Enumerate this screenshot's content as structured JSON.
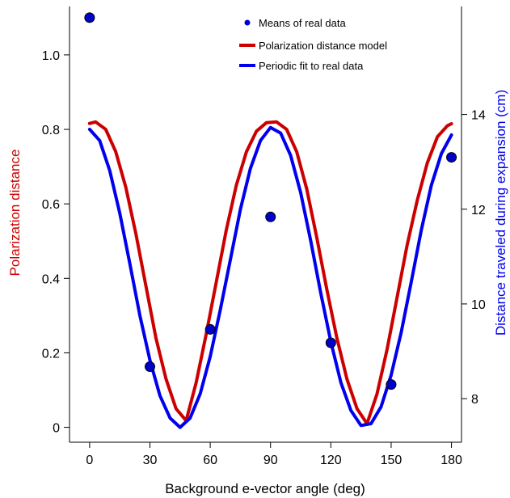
{
  "chart_data": {
    "type": "line",
    "xlabel": "Background e-vector angle (deg)",
    "ylabel_left": "Polarization distance",
    "ylabel_right": "Distance traveled during expansion (cm)",
    "xlim": [
      -10,
      185
    ],
    "ylim_left": [
      -0.04,
      1.13
    ],
    "ylim_right": [
      7.08,
      16.28
    ],
    "x_ticks": [
      0,
      30,
      60,
      90,
      120,
      150,
      180
    ],
    "y_left_ticks": [
      0,
      0.2,
      0.4,
      0.6,
      0.8,
      1.0
    ],
    "y_left_tick_labels": [
      "0",
      "0.2",
      "0.4",
      "0.6",
      "0.8",
      "1.0"
    ],
    "y_right_ticks": [
      8,
      10,
      12,
      14
    ],
    "y_right_tick_labels": [
      "8",
      "10",
      "12",
      "14"
    ],
    "colors": {
      "model": "#cc0000",
      "fit": "#0000ee",
      "points": "#0000cc",
      "left_label": "#cc0000",
      "right_label": "#0000ee"
    },
    "legend_placement": "top-right",
    "grid": false,
    "series": [
      {
        "name": "Means of real data",
        "kind": "scatter",
        "axis": "left",
        "points": [
          {
            "x": 0,
            "y": 1.1
          },
          {
            "x": 30,
            "y": 0.163
          },
          {
            "x": 60,
            "y": 0.263
          },
          {
            "x": 90,
            "y": 0.565
          },
          {
            "x": 120,
            "y": 0.227
          },
          {
            "x": 150,
            "y": 0.115
          },
          {
            "x": 180,
            "y": 0.725
          }
        ]
      },
      {
        "name": "Polarization distance model",
        "kind": "line",
        "axis": "left",
        "points": [
          {
            "x": 0,
            "y": 0.816
          },
          {
            "x": 3,
            "y": 0.82
          },
          {
            "x": 8,
            "y": 0.8
          },
          {
            "x": 13,
            "y": 0.74
          },
          {
            "x": 18,
            "y": 0.645
          },
          {
            "x": 23,
            "y": 0.52
          },
          {
            "x": 28,
            "y": 0.38
          },
          {
            "x": 33,
            "y": 0.24
          },
          {
            "x": 38,
            "y": 0.13
          },
          {
            "x": 43,
            "y": 0.05
          },
          {
            "x": 48,
            "y": 0.018
          },
          {
            "x": 53,
            "y": 0.12
          },
          {
            "x": 58,
            "y": 0.25
          },
          {
            "x": 63,
            "y": 0.39
          },
          {
            "x": 68,
            "y": 0.53
          },
          {
            "x": 73,
            "y": 0.65
          },
          {
            "x": 78,
            "y": 0.74
          },
          {
            "x": 83,
            "y": 0.795
          },
          {
            "x": 88,
            "y": 0.818
          },
          {
            "x": 93,
            "y": 0.82
          },
          {
            "x": 98,
            "y": 0.8
          },
          {
            "x": 103,
            "y": 0.74
          },
          {
            "x": 108,
            "y": 0.64
          },
          {
            "x": 113,
            "y": 0.51
          },
          {
            "x": 118,
            "y": 0.37
          },
          {
            "x": 123,
            "y": 0.24
          },
          {
            "x": 128,
            "y": 0.13
          },
          {
            "x": 133,
            "y": 0.05
          },
          {
            "x": 138,
            "y": 0.01
          },
          {
            "x": 143,
            "y": 0.09
          },
          {
            "x": 148,
            "y": 0.21
          },
          {
            "x": 153,
            "y": 0.35
          },
          {
            "x": 158,
            "y": 0.49
          },
          {
            "x": 163,
            "y": 0.61
          },
          {
            "x": 168,
            "y": 0.71
          },
          {
            "x": 173,
            "y": 0.78
          },
          {
            "x": 178,
            "y": 0.81
          },
          {
            "x": 180,
            "y": 0.815
          }
        ]
      },
      {
        "name": "Periodic fit to real data",
        "kind": "line",
        "axis": "left",
        "points": [
          {
            "x": 0,
            "y": 0.8
          },
          {
            "x": 5,
            "y": 0.77
          },
          {
            "x": 10,
            "y": 0.69
          },
          {
            "x": 15,
            "y": 0.575
          },
          {
            "x": 20,
            "y": 0.44
          },
          {
            "x": 25,
            "y": 0.3
          },
          {
            "x": 30,
            "y": 0.18
          },
          {
            "x": 35,
            "y": 0.085
          },
          {
            "x": 40,
            "y": 0.025
          },
          {
            "x": 45,
            "y": 0.0
          },
          {
            "x": 50,
            "y": 0.025
          },
          {
            "x": 55,
            "y": 0.09
          },
          {
            "x": 60,
            "y": 0.19
          },
          {
            "x": 65,
            "y": 0.315
          },
          {
            "x": 70,
            "y": 0.45
          },
          {
            "x": 75,
            "y": 0.585
          },
          {
            "x": 80,
            "y": 0.695
          },
          {
            "x": 85,
            "y": 0.77
          },
          {
            "x": 90,
            "y": 0.805
          },
          {
            "x": 95,
            "y": 0.79
          },
          {
            "x": 100,
            "y": 0.73
          },
          {
            "x": 105,
            "y": 0.63
          },
          {
            "x": 110,
            "y": 0.5
          },
          {
            "x": 115,
            "y": 0.36
          },
          {
            "x": 120,
            "y": 0.23
          },
          {
            "x": 125,
            "y": 0.12
          },
          {
            "x": 130,
            "y": 0.045
          },
          {
            "x": 135,
            "y": 0.005
          },
          {
            "x": 140,
            "y": 0.01
          },
          {
            "x": 145,
            "y": 0.055
          },
          {
            "x": 150,
            "y": 0.14
          },
          {
            "x": 155,
            "y": 0.255
          },
          {
            "x": 160,
            "y": 0.39
          },
          {
            "x": 165,
            "y": 0.53
          },
          {
            "x": 170,
            "y": 0.65
          },
          {
            "x": 175,
            "y": 0.735
          },
          {
            "x": 180,
            "y": 0.785
          }
        ]
      }
    ]
  }
}
